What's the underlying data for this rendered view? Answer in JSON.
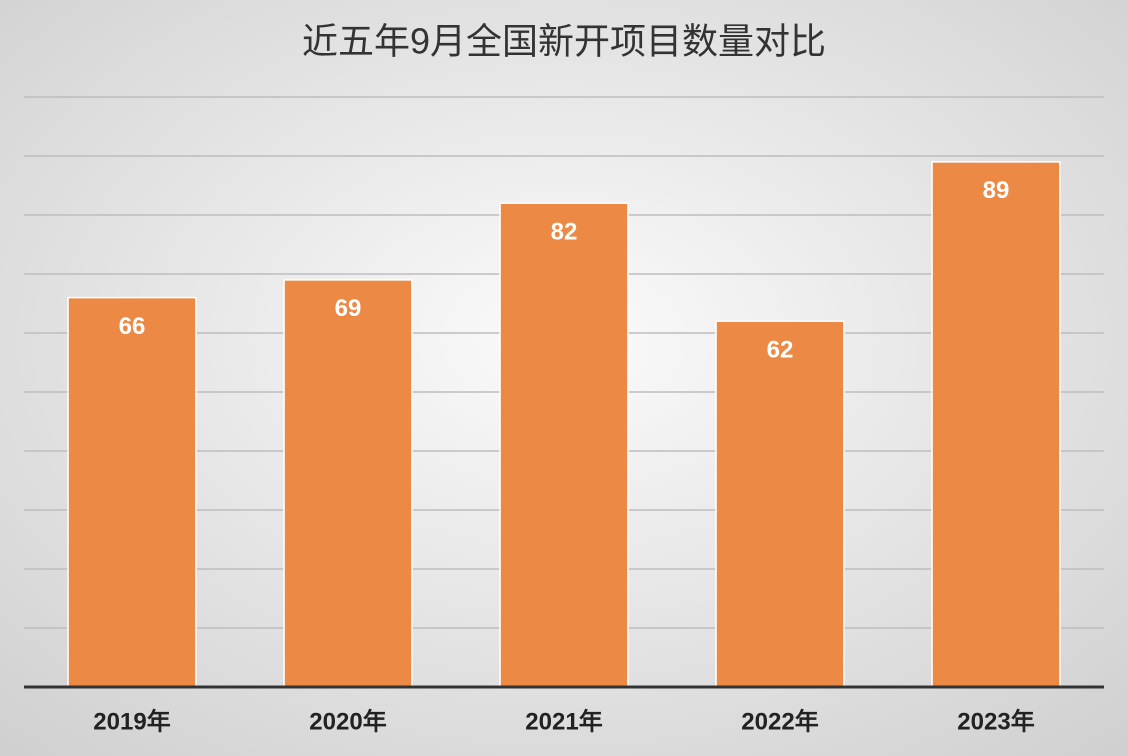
{
  "chart_data": {
    "type": "bar",
    "title": "近五年9月全国新开项目数量对比",
    "categories": [
      "2019年",
      "2020年",
      "2021年",
      "2022年",
      "2023年"
    ],
    "values": [
      66,
      69,
      82,
      62,
      89
    ],
    "color": "#ec8a45",
    "ylim": [
      0,
      100
    ],
    "yticks": [
      0,
      10,
      20,
      30,
      40,
      50,
      60,
      70,
      80,
      90,
      100
    ],
    "grid": true
  }
}
